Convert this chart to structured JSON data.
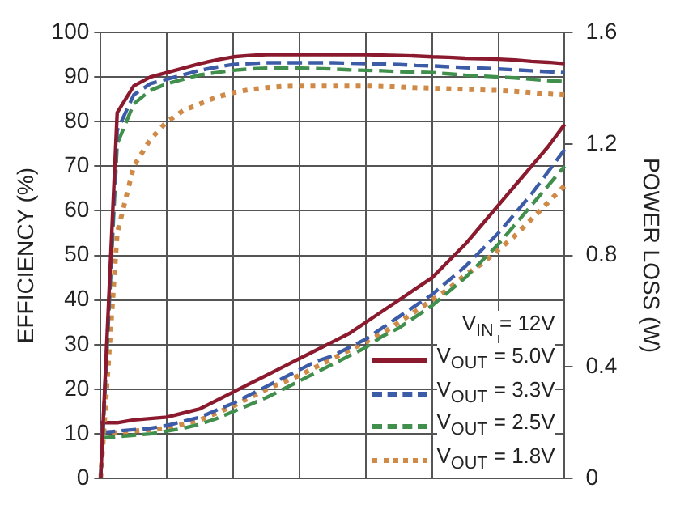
{
  "chart_data": {
    "type": "line",
    "ylabel": "EFFICIENCY (%)",
    "y2label": "POWER LOSS (W)",
    "legend_title": "V$_{IN}$ = 12V",
    "legend": "bottom right",
    "grid": true,
    "marker": "none",
    "categories": [
      null,
      null,
      null,
      null,
      null,
      null,
      null,
      null,
      null,
      null,
      null,
      null,
      null,
      null,
      null,
      null,
      null,
      null,
      null,
      null,
      null,
      null,
      null,
      null,
      null,
      null,
      null,
      null,
      null
    ],
    "ylim": [
      0,
      100
    ],
    "yticks": [
      0,
      10,
      20,
      30,
      40,
      50,
      60,
      70,
      80,
      90,
      100
    ],
    "y2lim": [
      0,
      1.6
    ],
    "y2ticks": [
      {
        "value": 0,
        "label": "0"
      },
      0.4,
      0.8,
      1.2,
      1.6
    ],
    "series": [
      {
        "name": "V$_{OUT}$ = 5.0V",
        "color": "#8b1a2e",
        "line_style": "solid",
        "values": [
          0,
          82,
          88,
          90,
          91,
          92,
          93,
          93.8,
          94.5,
          94.8,
          95,
          95,
          95,
          95,
          95,
          95,
          95,
          94.9,
          94.8,
          94.7,
          94.5,
          94.4,
          94.2,
          94.1,
          94,
          93.8,
          93.5,
          93.3,
          93
        ]
      },
      {
        "name": "V$_{OUT}$ = 3.3V",
        "color": "#3d5ca8",
        "line_style": "dashed",
        "values": [
          0,
          78,
          86,
          88.5,
          89.5,
          90.5,
          91.5,
          92.2,
          92.8,
          93,
          93.2,
          93.2,
          93.2,
          93.2,
          93.2,
          93.1,
          93,
          92.9,
          92.8,
          92.6,
          92.5,
          92.3,
          92.1,
          92,
          91.8,
          91.6,
          91.4,
          91.2,
          91
        ]
      },
      {
        "name": "V$_{OUT}$ = 2.5V",
        "color": "#418f4c",
        "line_style": "dashed",
        "values": [
          0,
          75,
          84,
          87,
          88.5,
          89.5,
          90.5,
          91,
          91.5,
          91.8,
          92,
          92,
          92,
          91.9,
          91.8,
          91.6,
          91.5,
          91.4,
          91.2,
          91.1,
          91,
          90.7,
          90.4,
          90.2,
          90,
          89.8,
          89.5,
          89.2,
          89
        ]
      },
      {
        "name": "V$_{OUT}$ = 1.8V",
        "color": "#cf8a48",
        "line_style": "dotted",
        "values": [
          0,
          55,
          70,
          76,
          80,
          82.5,
          84,
          85.5,
          86.5,
          87.2,
          87.6,
          87.9,
          88,
          88,
          88,
          88,
          88,
          87.9,
          87.8,
          87.6,
          87.5,
          87.4,
          87.2,
          87.1,
          87,
          86.8,
          86.5,
          86.2,
          86
        ]
      },
      {
        "color": "#8b1a2e",
        "line_style": "solid",
        "axis": "y2",
        "values": [
          0.2,
          0.2,
          0.21,
          0.215,
          0.22,
          0.235,
          0.25,
          0.28,
          0.31,
          0.34,
          0.37,
          0.4,
          0.43,
          0.46,
          0.49,
          0.52,
          0.56,
          0.6,
          0.64,
          0.68,
          0.72,
          0.78,
          0.84,
          0.91,
          0.98,
          1.05,
          1.12,
          1.19,
          1.27
        ]
      },
      {
        "color": "#3d5ca8",
        "line_style": "dashed",
        "axis": "y2",
        "values": [
          0.165,
          0.17,
          0.175,
          0.18,
          0.19,
          0.205,
          0.22,
          0.245,
          0.27,
          0.3,
          0.33,
          0.36,
          0.39,
          0.42,
          0.44,
          0.47,
          0.5,
          0.54,
          0.58,
          0.62,
          0.66,
          0.71,
          0.76,
          0.82,
          0.88,
          0.95,
          1.02,
          1.1,
          1.18
        ]
      },
      {
        "color": "#418f4c",
        "line_style": "dashed",
        "axis": "y2",
        "values": [
          0.145,
          0.15,
          0.155,
          0.16,
          0.17,
          0.18,
          0.195,
          0.215,
          0.24,
          0.265,
          0.29,
          0.32,
          0.35,
          0.38,
          0.41,
          0.44,
          0.47,
          0.51,
          0.54,
          0.58,
          0.62,
          0.67,
          0.72,
          0.78,
          0.84,
          0.91,
          0.98,
          1.05,
          1.12
        ]
      },
      {
        "color": "#cf8a48",
        "line_style": "dotted",
        "axis": "y2",
        "values": [
          0.16,
          0.165,
          0.17,
          0.175,
          0.18,
          0.195,
          0.21,
          0.235,
          0.26,
          0.29,
          0.32,
          0.345,
          0.37,
          0.4,
          0.43,
          0.46,
          0.49,
          0.52,
          0.56,
          0.6,
          0.64,
          0.68,
          0.73,
          0.77,
          0.82,
          0.87,
          0.93,
          0.99,
          1.05
        ]
      }
    ]
  }
}
